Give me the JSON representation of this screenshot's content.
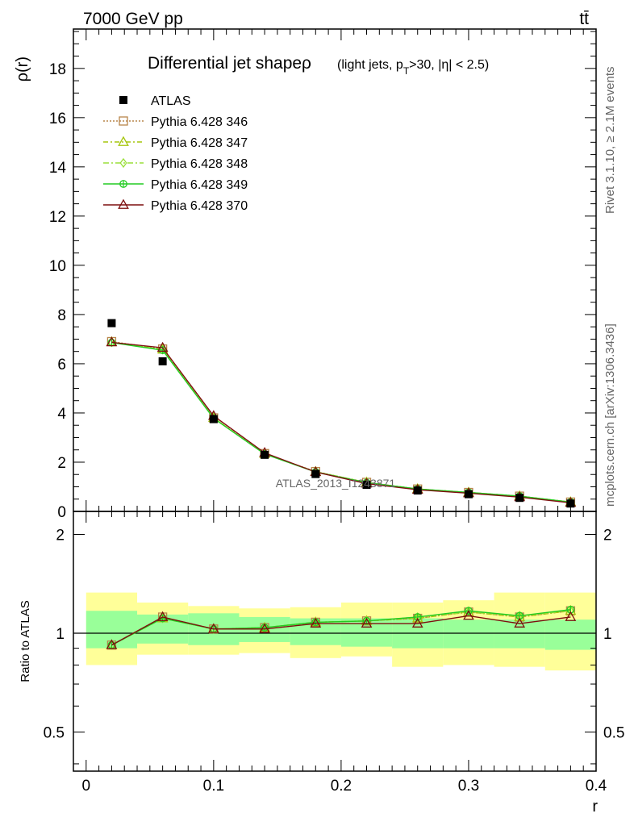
{
  "chart_data": {
    "type": "line",
    "header_left": "7000 GeV pp",
    "header_right": "tt̄",
    "title": "Differential jet shapeρ",
    "title_suffix": "(light jets, p_T>30, |η| < 2.5)",
    "ylabel": "ρ(r)",
    "ratio_ylabel": "Ratio to ATLAS",
    "xlabel": "r",
    "watermark": "ATLAS_2013_I1243871",
    "side_text_top": "Rivet 3.1.10, ≥ 2.1M events",
    "side_text_bottom": "mcplots.cern.ch [arXiv:1306.3436]",
    "xlim": [
      -0.01,
      0.4
    ],
    "ylim": [
      0,
      19.6
    ],
    "ratio_ylim": [
      0.38,
      2.35
    ],
    "ratio_scale": "log",
    "x_ticks": [
      "0",
      "0.1",
      "0.2",
      "0.3",
      "0.4"
    ],
    "y_ticks": [
      "0",
      "2",
      "4",
      "6",
      "8",
      "10",
      "12",
      "14",
      "16",
      "18"
    ],
    "ratio_ticks": [
      "0.5",
      "1",
      "2"
    ],
    "x": [
      0.02,
      0.06,
      0.1,
      0.14,
      0.18,
      0.22,
      0.26,
      0.3,
      0.34,
      0.38
    ],
    "bin_edges": [
      0.0,
      0.04,
      0.08,
      0.12,
      0.16,
      0.2,
      0.24,
      0.28,
      0.32,
      0.36,
      0.4
    ],
    "data": {
      "name": "ATLAS",
      "values": [
        7.65,
        6.1,
        3.75,
        2.3,
        1.52,
        1.08,
        0.85,
        0.7,
        0.55,
        0.32
      ]
    },
    "series": [
      {
        "name": "Pythia 6.428 346",
        "color": "#b8864b",
        "marker": "square",
        "dash": "2,2",
        "values": [
          6.9,
          6.6,
          3.8,
          2.35,
          1.62,
          1.18,
          0.91,
          0.77,
          0.62,
          0.38
        ],
        "ratio": [
          0.92,
          1.12,
          1.03,
          1.04,
          1.08,
          1.09,
          1.11,
          1.16,
          1.12,
          1.17
        ]
      },
      {
        "name": "Pythia 6.428 347",
        "color": "#a6c60f",
        "marker": "triangle",
        "dash": "6,3,2,3",
        "values": [
          6.88,
          6.58,
          3.8,
          2.34,
          1.61,
          1.18,
          0.91,
          0.77,
          0.62,
          0.38
        ],
        "ratio": [
          0.92,
          1.11,
          1.03,
          1.04,
          1.08,
          1.09,
          1.11,
          1.16,
          1.12,
          1.17
        ]
      },
      {
        "name": "Pythia 6.428 348",
        "color": "#9adf3a",
        "marker": "diamond",
        "dash": "7,3,2,3",
        "values": [
          6.87,
          6.57,
          3.79,
          2.34,
          1.61,
          1.18,
          0.91,
          0.77,
          0.62,
          0.38
        ],
        "ratio": [
          0.92,
          1.11,
          1.03,
          1.04,
          1.08,
          1.09,
          1.12,
          1.16,
          1.13,
          1.17
        ]
      },
      {
        "name": "Pythia 6.428 349",
        "color": "#22cc22",
        "marker": "circle-cross",
        "dash": "",
        "values": [
          6.86,
          6.55,
          3.78,
          2.33,
          1.6,
          1.17,
          0.91,
          0.77,
          0.62,
          0.38
        ],
        "ratio": [
          0.92,
          1.11,
          1.03,
          1.04,
          1.08,
          1.09,
          1.12,
          1.17,
          1.13,
          1.18
        ]
      },
      {
        "name": "Pythia 6.428 370",
        "color": "#7d0f0f",
        "marker": "triangle",
        "dash": "",
        "values": [
          6.87,
          6.65,
          3.88,
          2.38,
          1.6,
          1.13,
          0.88,
          0.74,
          0.58,
          0.35
        ],
        "ratio": [
          0.92,
          1.12,
          1.03,
          1.03,
          1.07,
          1.07,
          1.07,
          1.13,
          1.07,
          1.12
        ]
      }
    ],
    "ratio_bands": {
      "inner_color": "#99ff99",
      "outer_color": "#ffff99",
      "inner": [
        [
          0.9,
          1.17
        ],
        [
          0.93,
          1.14
        ],
        [
          0.92,
          1.15
        ],
        [
          0.94,
          1.12
        ],
        [
          0.92,
          1.11
        ],
        [
          0.91,
          1.11
        ],
        [
          0.9,
          1.11
        ],
        [
          0.9,
          1.1
        ],
        [
          0.9,
          1.1
        ],
        [
          0.89,
          1.1
        ]
      ],
      "outer": [
        [
          0.8,
          1.33
        ],
        [
          0.86,
          1.24
        ],
        [
          0.86,
          1.21
        ],
        [
          0.87,
          1.19
        ],
        [
          0.84,
          1.2
        ],
        [
          0.85,
          1.24
        ],
        [
          0.79,
          1.24
        ],
        [
          0.8,
          1.26
        ],
        [
          0.79,
          1.33
        ],
        [
          0.77,
          1.33
        ]
      ]
    }
  }
}
